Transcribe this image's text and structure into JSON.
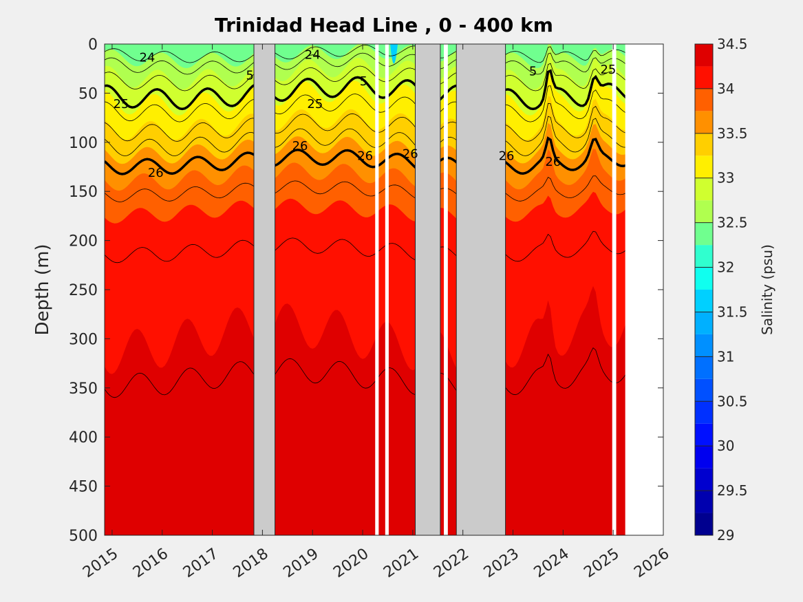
{
  "chart_data": {
    "type": "heatmap",
    "title": "Trinidad Head Line , 0 - 400 km",
    "ylabel": "Depth (m)",
    "xlabel": "",
    "xlim": [
      2014.85,
      2026.0
    ],
    "ylim": [
      0,
      500
    ],
    "y_reversed": true,
    "x_ticks": [
      "2015",
      "2016",
      "2017",
      "2018",
      "2019",
      "2020",
      "2021",
      "2022",
      "2023",
      "2024",
      "2025",
      "2026"
    ],
    "x_tick_values": [
      2015,
      2016,
      2017,
      2018,
      2019,
      2020,
      2021,
      2022,
      2023,
      2024,
      2025,
      2026
    ],
    "y_ticks": [
      "0",
      "50",
      "100",
      "150",
      "200",
      "250",
      "300",
      "350",
      "400",
      "450",
      "500"
    ],
    "y_tick_values": [
      0,
      50,
      100,
      150,
      200,
      250,
      300,
      350,
      400,
      450,
      500
    ],
    "colorbar": {
      "label": "Salinity (psu)",
      "min": 29,
      "max": 34.5,
      "ticks": [
        "29",
        "29.5",
        "30",
        "30.5",
        "31",
        "31.5",
        "32",
        "32.5",
        "33",
        "33.5",
        "34",
        "34.5"
      ],
      "tick_values": [
        29,
        29.5,
        30,
        30.5,
        31,
        31.5,
        32,
        32.5,
        33,
        33.5,
        34,
        34.5
      ],
      "levels": [
        {
          "from": 29.0,
          "to": 29.25,
          "color": "#00008f"
        },
        {
          "from": 29.25,
          "to": 29.5,
          "color": "#0000af"
        },
        {
          "from": 29.5,
          "to": 29.75,
          "color": "#0000cf"
        },
        {
          "from": 29.75,
          "to": 30.0,
          "color": "#0000ef"
        },
        {
          "from": 30.0,
          "to": 30.25,
          "color": "#0010ff"
        },
        {
          "from": 30.25,
          "to": 30.5,
          "color": "#0030ff"
        },
        {
          "from": 30.5,
          "to": 30.75,
          "color": "#0050ff"
        },
        {
          "from": 30.75,
          "to": 31.0,
          "color": "#0070ff"
        },
        {
          "from": 31.0,
          "to": 31.25,
          "color": "#0090ff"
        },
        {
          "from": 31.25,
          "to": 31.5,
          "color": "#00b0ff"
        },
        {
          "from": 31.5,
          "to": 31.75,
          "color": "#00d0ff"
        },
        {
          "from": 31.75,
          "to": 32.0,
          "color": "#10ffef"
        },
        {
          "from": 32.0,
          "to": 32.25,
          "color": "#30ffcf"
        },
        {
          "from": 32.25,
          "to": 32.5,
          "color": "#70ff8f"
        },
        {
          "from": 32.5,
          "to": 32.75,
          "color": "#b0ff4f"
        },
        {
          "from": 32.75,
          "to": 33.0,
          "color": "#d0ff2f"
        },
        {
          "from": 33.0,
          "to": 33.25,
          "color": "#ffef00"
        },
        {
          "from": 33.25,
          "to": 33.5,
          "color": "#ffcf00"
        },
        {
          "from": 33.5,
          "to": 33.75,
          "color": "#ff9000"
        },
        {
          "from": 33.75,
          "to": 34.0,
          "color": "#ff6000"
        },
        {
          "from": 34.0,
          "to": 34.25,
          "color": "#ff1000"
        },
        {
          "from": 34.25,
          "to": 34.5,
          "color": "#df0000"
        },
        {
          "from": 34.5,
          "to": 34.75,
          "color": "#bf0000"
        },
        {
          "from": 34.75,
          "to": 35.0,
          "color": "#8f0000"
        }
      ]
    },
    "no_data_periods": [
      {
        "x0": 2017.83,
        "x1": 2018.25,
        "style": "gray"
      },
      {
        "x0": 2021.05,
        "x1": 2021.55,
        "style": "gray"
      },
      {
        "x0": 2021.87,
        "x1": 2022.85,
        "style": "gray"
      },
      {
        "x0": 2020.25,
        "x1": 2020.32,
        "style": "white"
      },
      {
        "x0": 2020.45,
        "x1": 2020.52,
        "style": "white"
      },
      {
        "x0": 2021.62,
        "x1": 2021.7,
        "style": "white"
      },
      {
        "x0": 2024.98,
        "x1": 2025.06,
        "style": "white"
      },
      {
        "x0": 2025.24,
        "x1": 2026.0,
        "style": "white"
      }
    ],
    "contour_labels": [
      {
        "text": "25",
        "x": 2015.18,
        "y": 65
      },
      {
        "text": "26",
        "x": 2015.87,
        "y": 135
      },
      {
        "text": "24",
        "x": 2015.7,
        "y": 18
      },
      {
        "text": "5",
        "x": 2017.75,
        "y": 36
      },
      {
        "text": "25",
        "x": 2019.05,
        "y": 65
      },
      {
        "text": "24",
        "x": 2019.0,
        "y": 15
      },
      {
        "text": "26",
        "x": 2018.75,
        "y": 108
      },
      {
        "text": "26",
        "x": 2020.05,
        "y": 118
      },
      {
        "text": "5",
        "x": 2020.02,
        "y": 42
      },
      {
        "text": "26",
        "x": 2020.95,
        "y": 116
      },
      {
        "text": "26",
        "x": 2022.87,
        "y": 118
      },
      {
        "text": "26",
        "x": 2023.8,
        "y": 124
      },
      {
        "text": "5",
        "x": 2023.4,
        "y": 32
      },
      {
        "text": "25",
        "x": 2024.9,
        "y": 30
      }
    ]
  }
}
